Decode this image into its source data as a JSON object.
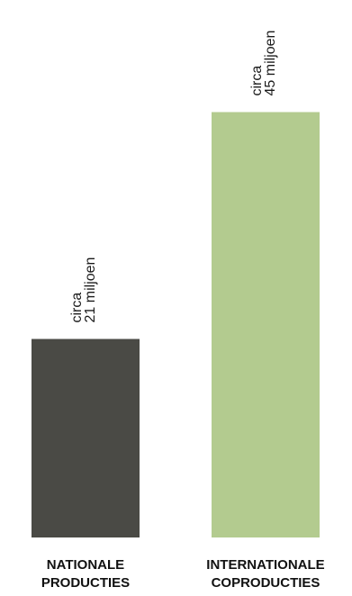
{
  "chart_data": {
    "type": "bar",
    "categories": [
      [
        "NATIONALE",
        "PRODUCTIES"
      ],
      [
        "INTERNATIONALE",
        "COPRODUCTIES"
      ]
    ],
    "values": [
      21,
      45
    ],
    "unit": "miljoen",
    "data_labels": [
      [
        "circa",
        "21 miljoen"
      ],
      [
        "circa",
        "45 miljoen"
      ]
    ],
    "colors": [
      "#4a4a45",
      "#b3cb8f"
    ],
    "title": "",
    "xlabel": "",
    "ylabel": "",
    "ylim": [
      0,
      50
    ],
    "grid": false,
    "legend": "none"
  }
}
